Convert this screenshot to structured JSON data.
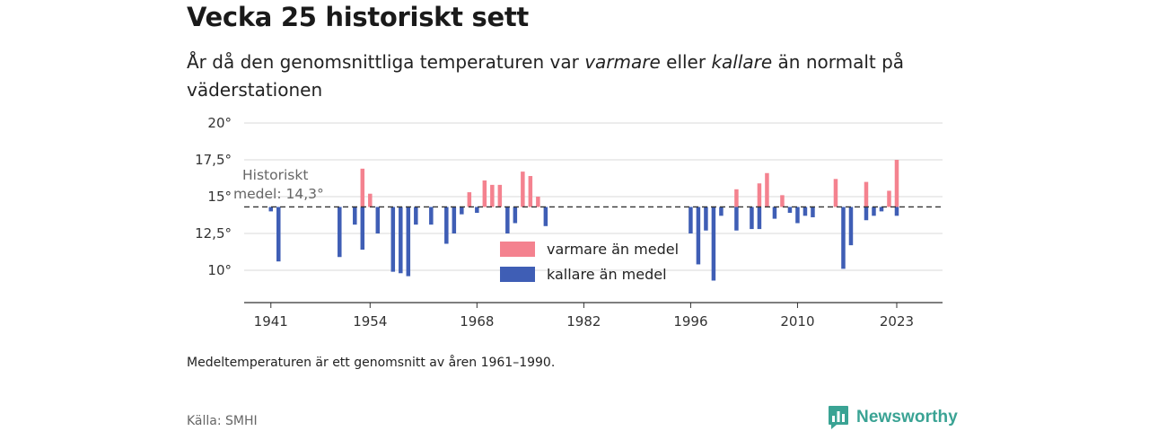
{
  "header": {
    "title": "Vecka 25 historiskt sett",
    "subtitle_parts": [
      "År då den genomsnittliga temperaturen var ",
      "varmare",
      " eller ",
      "kallare",
      " än normalt på väderstationen"
    ]
  },
  "footer": {
    "note": "Medeltemperaturen är ett genomsnitt av åren 1961–1990.",
    "source": "Källa: SMHI",
    "brand": "Newsworthy"
  },
  "colors": {
    "warmer": "#f4828f",
    "colder": "#3f5eb5",
    "brand": "#3aa394",
    "grid": "#d9d9d9",
    "mean_line": "#333333"
  },
  "icons": [
    "newsworthy-logo-icon"
  ],
  "chart_data": {
    "type": "bar",
    "baseline": 14.3,
    "baseline_label": [
      "Historiskt",
      "medel: 14,3°"
    ],
    "ylim": [
      8.0,
      20.0
    ],
    "y_ticks": [
      10,
      12.5,
      15,
      17.5,
      20
    ],
    "y_tick_labels": [
      "10°",
      "12,5°",
      "15°",
      "17,5°",
      "20°"
    ],
    "xlim": [
      1937.5,
      2029
    ],
    "x_ticks": [
      1941,
      1954,
      1968,
      1982,
      1996,
      2010,
      2023
    ],
    "x_tick_labels": [
      "1941",
      "1954",
      "1968",
      "1982",
      "1996",
      "2010",
      "2023"
    ],
    "legend": {
      "position": "center",
      "entries": [
        "varmare än medel",
        "kallare än medel"
      ]
    },
    "grid": true,
    "series": [
      {
        "name": "varmare än medel",
        "x": [
          1953,
          1954,
          1967,
          1969,
          1970,
          1971,
          1974,
          1975,
          1976,
          2002,
          2005,
          2006,
          2008,
          2015,
          2019,
          2022,
          2023
        ],
        "values": [
          16.9,
          15.2,
          15.3,
          16.1,
          15.8,
          15.8,
          16.7,
          16.4,
          15.0,
          15.5,
          15.9,
          16.6,
          15.1,
          16.2,
          16.0,
          15.4,
          17.5
        ]
      },
      {
        "name": "kallare än medel",
        "x": [
          1941,
          1942,
          1950,
          1952,
          1953,
          1955,
          1957,
          1958,
          1959,
          1960,
          1962,
          1964,
          1965,
          1966,
          1968,
          1972,
          1973,
          1977,
          1996,
          1997,
          1998,
          1999,
          2000,
          2002,
          2004,
          2005,
          2007,
          2009,
          2010,
          2011,
          2012,
          2016,
          2017,
          2019,
          2020,
          2021,
          2023
        ],
        "values": [
          14.0,
          10.6,
          10.9,
          13.1,
          11.4,
          12.5,
          9.9,
          9.8,
          9.6,
          13.1,
          13.1,
          11.8,
          12.5,
          13.8,
          13.9,
          12.5,
          13.2,
          13.0,
          12.5,
          10.4,
          12.7,
          9.3,
          13.7,
          12.7,
          12.8,
          12.8,
          13.5,
          13.9,
          13.2,
          13.7,
          13.6,
          10.1,
          11.7,
          13.4,
          13.7,
          14.0,
          13.7
        ]
      }
    ]
  }
}
